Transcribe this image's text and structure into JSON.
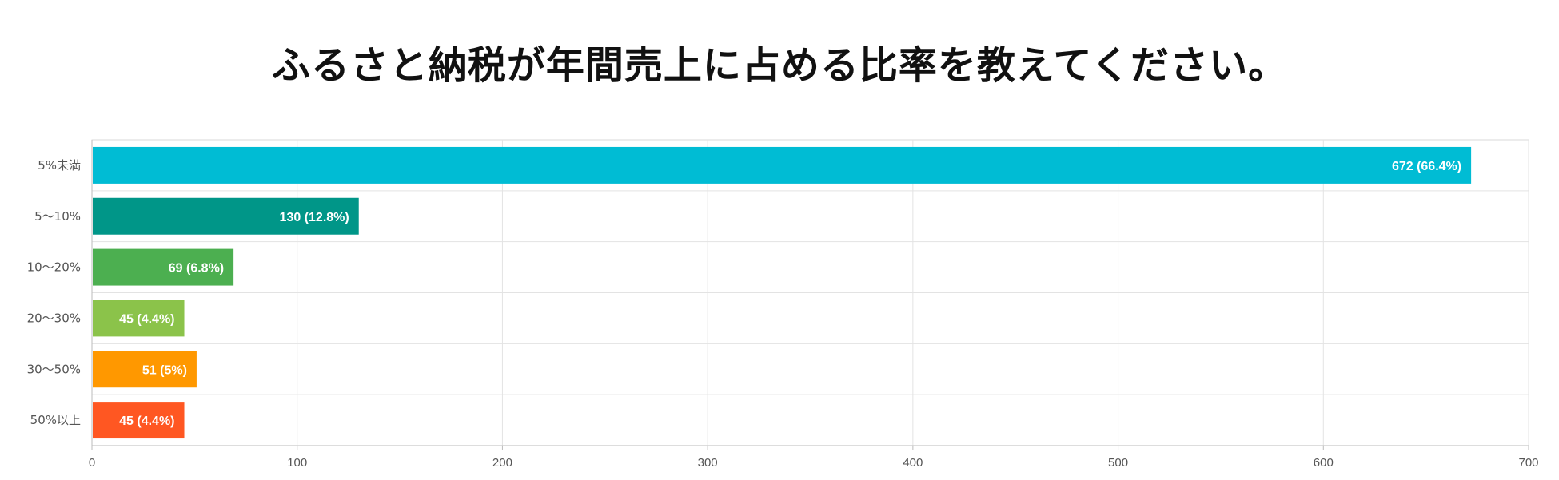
{
  "chart_data": {
    "type": "bar",
    "orientation": "horizontal",
    "title": "ふるさと納税が年間売上に占める比率を教えてください。",
    "categories": [
      "5%未満",
      "5〜10%",
      "10〜20%",
      "20〜30%",
      "30〜50%",
      "50%以上"
    ],
    "values": [
      672,
      130,
      69,
      45,
      51,
      45
    ],
    "data_labels": [
      "672 (66.4%)",
      "130 (12.8%)",
      "69 (6.8%)",
      "45 (4.4%)",
      "51 (5%)",
      "45 (4.4%)"
    ],
    "colors": [
      "#00BCD4",
      "#009688",
      "#4CAF50",
      "#8BC34A",
      "#FF9800",
      "#FF5722"
    ],
    "xlim": [
      0,
      700
    ],
    "xticks": [
      0,
      100,
      200,
      300,
      400,
      500,
      600,
      700
    ],
    "grid": true,
    "legend": "none"
  }
}
